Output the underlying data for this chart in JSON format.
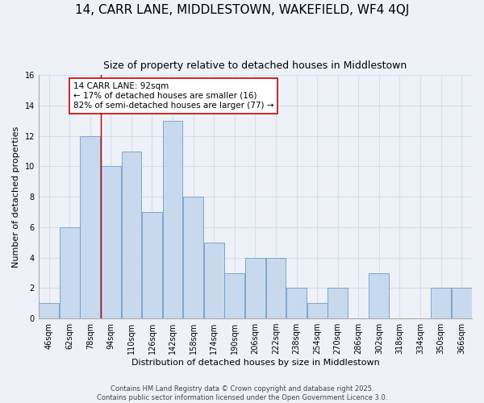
{
  "title": "14, CARR LANE, MIDDLESTOWN, WAKEFIELD, WF4 4QJ",
  "subtitle": "Size of property relative to detached houses in Middlestown",
  "xlabel": "Distribution of detached houses by size in Middlestown",
  "ylabel": "Number of detached properties",
  "bins": [
    46,
    62,
    78,
    94,
    110,
    126,
    142,
    158,
    174,
    190,
    206,
    222,
    238,
    254,
    270,
    286,
    302,
    318,
    334,
    350,
    366
  ],
  "values": [
    1,
    6,
    12,
    10,
    11,
    7,
    13,
    8,
    5,
    3,
    4,
    4,
    2,
    1,
    2,
    0,
    3,
    0,
    0,
    2,
    2
  ],
  "bar_color": "#c9d9ed",
  "bar_edge_color": "#6b9bc8",
  "reference_line_x": 94,
  "reference_line_color": "#aa0000",
  "annotation_text": "14 CARR LANE: 92sqm\n← 17% of detached houses are smaller (16)\n82% of semi-detached houses are larger (77) →",
  "annotation_box_color": "#ffffff",
  "annotation_box_edge_color": "#cc0000",
  "ylim": [
    0,
    16
  ],
  "yticks": [
    0,
    2,
    4,
    6,
    8,
    10,
    12,
    14,
    16
  ],
  "footer_line1": "Contains HM Land Registry data © Crown copyright and database right 2025.",
  "footer_line2": "Contains public sector information licensed under the Open Government Licence 3.0.",
  "background_color": "#eef2f8",
  "grid_color": "#d8dfe8",
  "title_fontsize": 11,
  "subtitle_fontsize": 9,
  "axis_label_fontsize": 8,
  "tick_fontsize": 7,
  "annotation_fontsize": 7.5,
  "footer_fontsize": 6
}
